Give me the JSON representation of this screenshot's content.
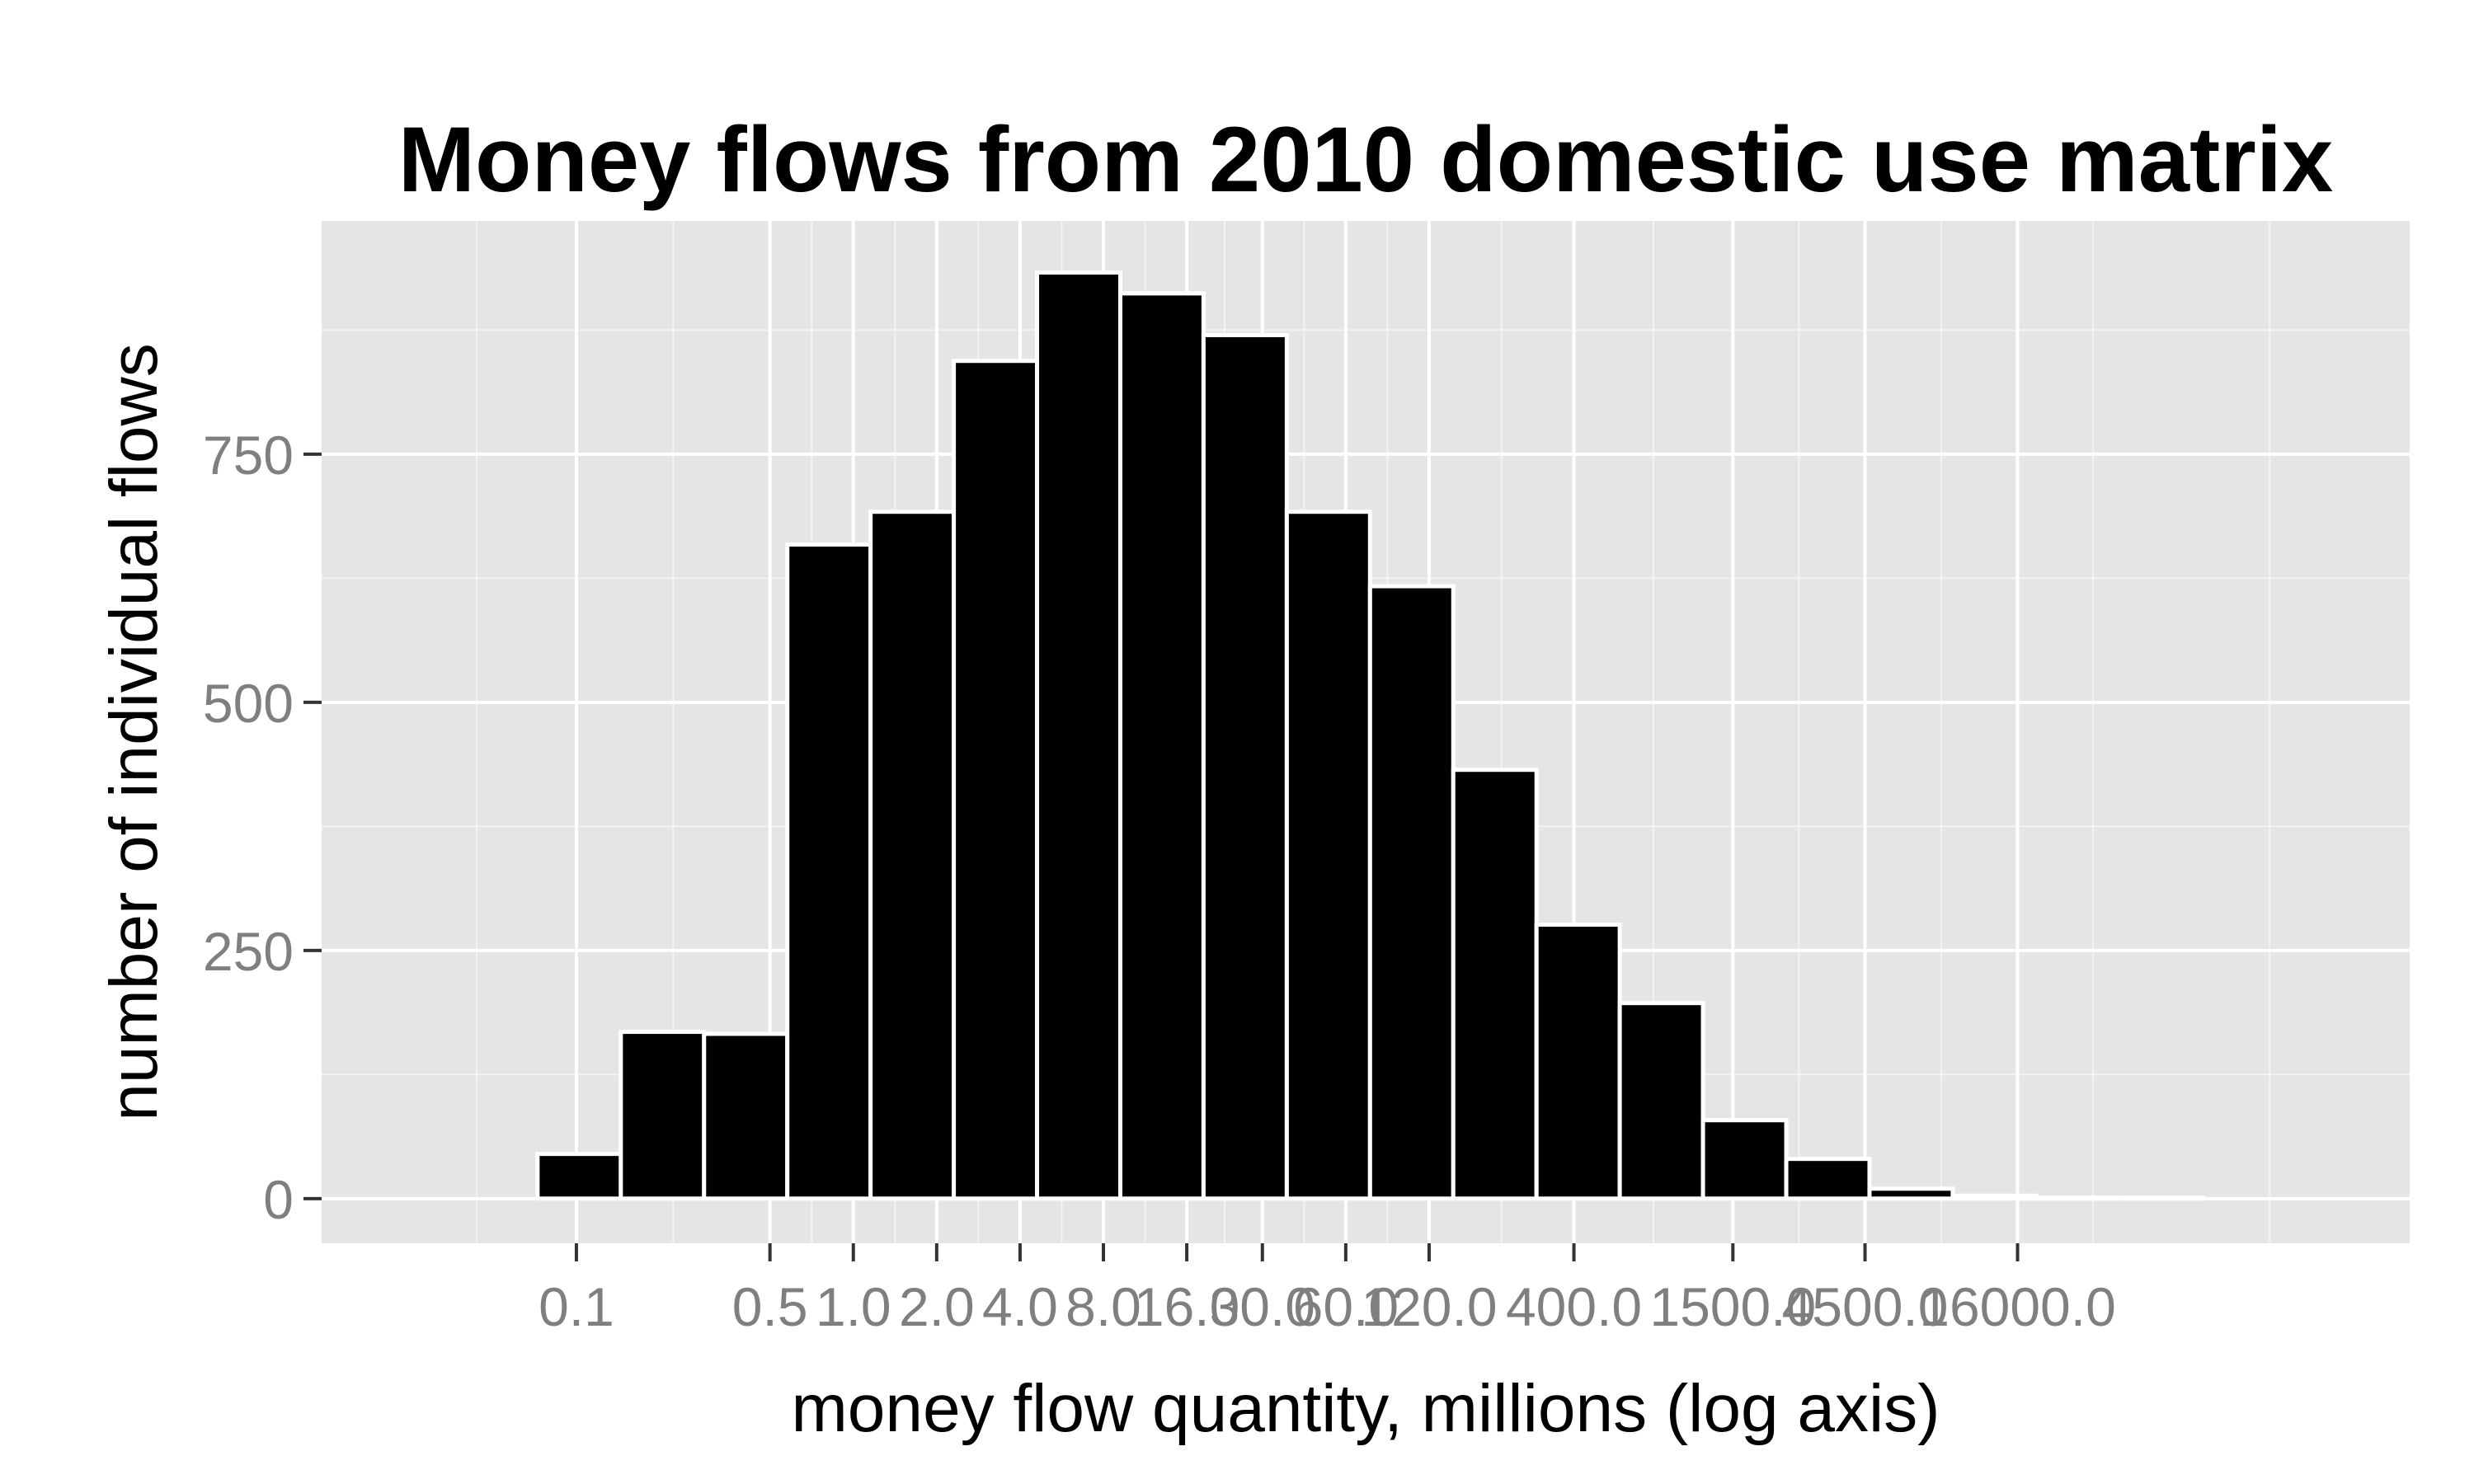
{
  "chart_data": {
    "type": "bar",
    "title": "Money flows from 2010 domestic use matrix",
    "xlabel": "money flow quantity, millions (log axis)",
    "ylabel": "number of individual flows",
    "x_scale": "log",
    "x_tick_labels": [
      "0.1",
      "0.5",
      "1.0",
      "2.0",
      "4.0",
      "8.0",
      "16.0",
      "30.0",
      "60.0",
      "120.0",
      "400.0",
      "1500.0",
      "4500.0",
      "16000.0"
    ],
    "x_ticks": [
      0.1,
      0.5,
      1.0,
      2.0,
      4.0,
      8.0,
      16.0,
      30.0,
      60.0,
      120.0,
      400.0,
      1500.0,
      4500.0,
      16000.0
    ],
    "y_ticks": [
      0,
      250,
      500,
      750
    ],
    "ylim": [
      -45,
      985
    ],
    "grid": true,
    "bar_fill": "#000000",
    "bar_outline": "#ffffff",
    "panel_background": "#e5e5e5",
    "grid_color": "#ffffff",
    "bins": [
      {
        "from": 0.0724,
        "to": 0.1447,
        "count": 45
      },
      {
        "from": 0.1447,
        "to": 0.2891,
        "count": 168
      },
      {
        "from": 0.2891,
        "to": 0.5776,
        "count": 166
      },
      {
        "from": 0.5776,
        "to": 1.1541,
        "count": 659
      },
      {
        "from": 1.1541,
        "to": 2.306,
        "count": 692
      },
      {
        "from": 2.306,
        "to": 4.607,
        "count": 844
      },
      {
        "from": 4.607,
        "to": 9.205,
        "count": 933
      },
      {
        "from": 9.205,
        "to": 18.39,
        "count": 912
      },
      {
        "from": 18.39,
        "to": 36.75,
        "count": 870
      },
      {
        "from": 36.75,
        "to": 73.42,
        "count": 692
      },
      {
        "from": 73.42,
        "to": 146.7,
        "count": 617
      },
      {
        "from": 146.7,
        "to": 293.1,
        "count": 432
      },
      {
        "from": 293.1,
        "to": 585.6,
        "count": 276
      },
      {
        "from": 585.6,
        "to": 1170,
        "count": 197
      },
      {
        "from": 1170,
        "to": 2338,
        "count": 79
      },
      {
        "from": 2338,
        "to": 4671,
        "count": 40
      },
      {
        "from": 4671,
        "to": 9332,
        "count": 10
      },
      {
        "from": 9332,
        "to": 18650,
        "count": 3
      },
      {
        "from": 18650,
        "to": 37260,
        "count": 1
      },
      {
        "from": 37260,
        "to": 74440,
        "count": 1
      }
    ]
  }
}
